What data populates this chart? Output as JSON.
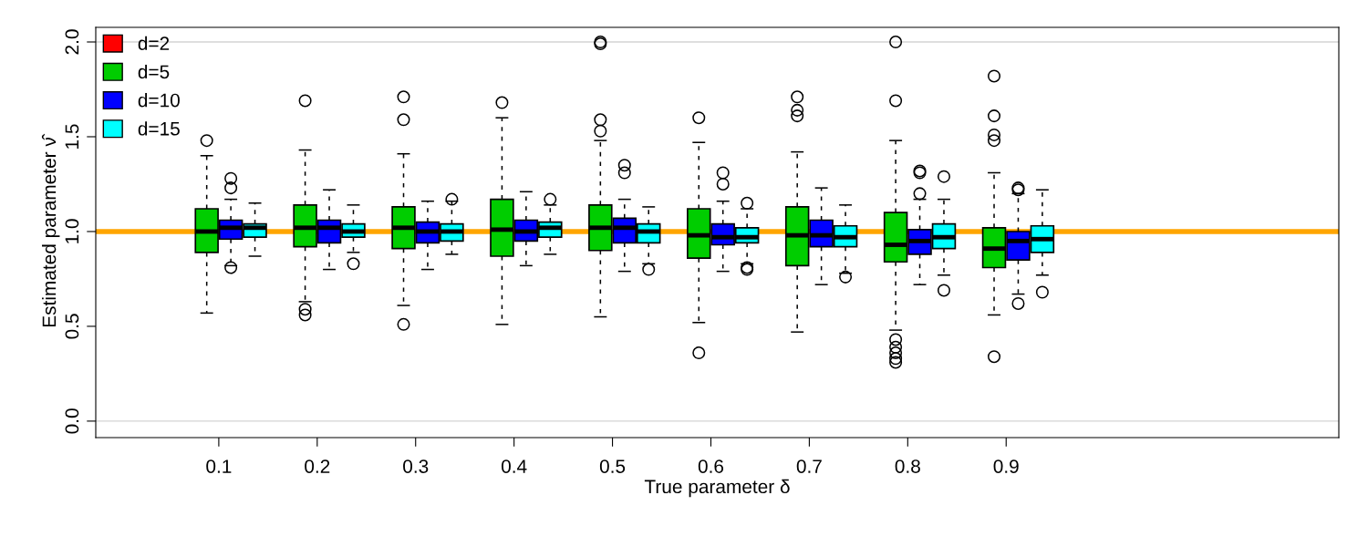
{
  "chart_data": {
    "type": "box",
    "xlabel": "True parameter δ",
    "ylabel": "Estimated parameter ν̂",
    "categories": [
      "0.1",
      "0.2",
      "0.3",
      "0.4",
      "0.5",
      "0.6",
      "0.7",
      "0.8",
      "0.9"
    ],
    "ylim": [
      -0.087,
      2.077
    ],
    "yticks": [
      {
        "value": 0,
        "label": "0.0"
      },
      {
        "value": 0.5,
        "label": "0.5"
      },
      {
        "value": 1,
        "label": "1.0"
      },
      {
        "value": 1.5,
        "label": "1.5"
      },
      {
        "value": 2,
        "label": "2.0"
      }
    ],
    "legend": "top left",
    "grid": false,
    "ref_lines": [
      {
        "axis": "y",
        "value": 0,
        "color": "#d3d3d3"
      },
      {
        "axis": "y",
        "value": 2,
        "color": "#d3d3d3"
      },
      {
        "axis": "y",
        "value": 1,
        "color": "#ffa500"
      }
    ],
    "series": [
      {
        "name": "d=2",
        "color": "#ff0000",
        "boxes": [
          null,
          null,
          null,
          null,
          null,
          null,
          null,
          null,
          null
        ]
      },
      {
        "name": "d=5",
        "color": "#00cd00",
        "boxes": [
          {
            "low": 0.57,
            "q1": 0.89,
            "median": 1.0,
            "q3": 1.12,
            "high": 1.4,
            "outliers": [
              1.48
            ]
          },
          {
            "low": 0.63,
            "q1": 0.92,
            "median": 1.02,
            "q3": 1.14,
            "high": 1.43,
            "outliers": [
              1.69,
              0.59,
              0.56
            ]
          },
          {
            "low": 0.61,
            "q1": 0.91,
            "median": 1.02,
            "q3": 1.13,
            "high": 1.41,
            "outliers": [
              1.71,
              1.59,
              0.51
            ]
          },
          {
            "low": 0.51,
            "q1": 0.87,
            "median": 1.01,
            "q3": 1.17,
            "high": 1.6,
            "outliers": [
              1.68
            ]
          },
          {
            "low": 0.55,
            "q1": 0.9,
            "median": 1.02,
            "q3": 1.14,
            "high": 1.48,
            "outliers": [
              2.0,
              1.99,
              1.59,
              1.53
            ]
          },
          {
            "low": 0.52,
            "q1": 0.86,
            "median": 0.98,
            "q3": 1.12,
            "high": 1.47,
            "outliers": [
              1.6,
              0.36
            ]
          },
          {
            "low": 0.47,
            "q1": 0.82,
            "median": 0.98,
            "q3": 1.13,
            "high": 1.42,
            "outliers": [
              1.71,
              1.64,
              1.61
            ]
          },
          {
            "low": 0.48,
            "q1": 0.84,
            "median": 0.93,
            "q3": 1.1,
            "high": 1.48,
            "outliers": [
              2.0,
              1.69,
              0.43,
              0.39,
              0.36,
              0.33,
              0.31
            ]
          },
          {
            "low": 0.56,
            "q1": 0.81,
            "median": 0.91,
            "q3": 1.02,
            "high": 1.31,
            "outliers": [
              1.82,
              1.61,
              1.51,
              1.48,
              0.34
            ]
          }
        ]
      },
      {
        "name": "d=10",
        "color": "#0000ff",
        "boxes": [
          {
            "low": 0.82,
            "q1": 0.96,
            "median": 1.02,
            "q3": 1.06,
            "high": 1.17,
            "outliers": [
              1.28,
              1.23,
              0.81
            ]
          },
          {
            "low": 0.8,
            "q1": 0.94,
            "median": 1.02,
            "q3": 1.06,
            "high": 1.22
          },
          {
            "low": 0.8,
            "q1": 0.94,
            "median": 1.0,
            "q3": 1.05,
            "high": 1.16
          },
          {
            "low": 0.82,
            "q1": 0.95,
            "median": 1.0,
            "q3": 1.06,
            "high": 1.21
          },
          {
            "low": 0.79,
            "q1": 0.94,
            "median": 1.02,
            "q3": 1.07,
            "high": 1.17,
            "outliers": [
              1.35,
              1.31
            ]
          },
          {
            "low": 0.79,
            "q1": 0.93,
            "median": 0.97,
            "q3": 1.04,
            "high": 1.16,
            "outliers": [
              1.31,
              1.25
            ]
          },
          {
            "low": 0.72,
            "q1": 0.92,
            "median": 0.98,
            "q3": 1.06,
            "high": 1.23
          },
          {
            "low": 0.72,
            "q1": 0.88,
            "median": 0.95,
            "q3": 1.01,
            "high": 1.17,
            "outliers": [
              1.32,
              1.31,
              1.2
            ]
          },
          {
            "low": 0.67,
            "q1": 0.85,
            "median": 0.95,
            "q3": 1.0,
            "high": 1.2,
            "outliers": [
              1.23,
              1.22,
              0.62
            ]
          }
        ]
      },
      {
        "name": "d=15",
        "color": "#00ffff",
        "boxes": [
          {
            "low": 0.87,
            "q1": 0.97,
            "median": 1.02,
            "q3": 1.04,
            "high": 1.15
          },
          {
            "low": 0.89,
            "q1": 0.97,
            "median": 1.0,
            "q3": 1.04,
            "high": 1.14,
            "outliers": [
              0.83
            ]
          },
          {
            "low": 0.88,
            "q1": 0.95,
            "median": 1.0,
            "q3": 1.04,
            "high": 1.16,
            "outliers": [
              1.17
            ]
          },
          {
            "low": 0.88,
            "q1": 0.97,
            "median": 1.02,
            "q3": 1.05,
            "high": 1.14,
            "outliers": [
              1.17
            ]
          },
          {
            "low": 0.83,
            "q1": 0.94,
            "median": 1.0,
            "q3": 1.04,
            "high": 1.13,
            "outliers": [
              0.8
            ]
          },
          {
            "low": 0.83,
            "q1": 0.94,
            "median": 0.97,
            "q3": 1.02,
            "high": 1.12,
            "outliers": [
              1.15,
              0.81,
              0.8
            ]
          },
          {
            "low": 0.78,
            "q1": 0.92,
            "median": 0.97,
            "q3": 1.03,
            "high": 1.14,
            "outliers": [
              0.76
            ]
          },
          {
            "low": 0.77,
            "q1": 0.91,
            "median": 0.97,
            "q3": 1.04,
            "high": 1.17,
            "outliers": [
              1.29,
              0.69
            ]
          },
          {
            "low": 0.77,
            "q1": 0.89,
            "median": 0.96,
            "q3": 1.03,
            "high": 1.22,
            "outliers": [
              0.68
            ]
          }
        ]
      }
    ]
  }
}
